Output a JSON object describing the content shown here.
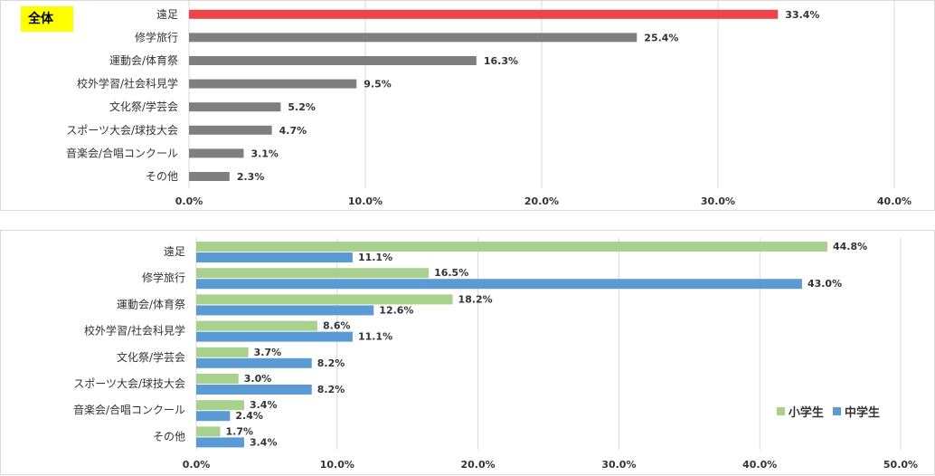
{
  "chart_data": [
    {
      "type": "bar",
      "orientation": "horizontal",
      "badge": "全体",
      "categories": [
        "遠足",
        "修学旅行",
        "運動会/体育祭",
        "校外学習/社会科見学",
        "文化祭/学芸会",
        "スポーツ大会/球技大会",
        "音楽会/合唱コンクール",
        "その他"
      ],
      "values": [
        33.4,
        25.4,
        16.3,
        9.5,
        5.2,
        4.7,
        3.1,
        2.3
      ],
      "data_labels": [
        "33.4%",
        "25.4%",
        "16.3%",
        "9.5%",
        "5.2%",
        "4.7%",
        "3.1%",
        "2.3%"
      ],
      "xlim": [
        0,
        40
      ],
      "xticks": [
        0,
        10,
        20,
        30,
        40
      ],
      "xtick_labels": [
        "0.0%",
        "10.0%",
        "20.0%",
        "30.0%",
        "40.0%"
      ],
      "highlight_color": "#f0444b",
      "bar_color": "#7f7f7f",
      "grid": true
    },
    {
      "type": "bar",
      "orientation": "horizontal",
      "categories": [
        "遠足",
        "修学旅行",
        "運動会/体育祭",
        "校外学習/社会科見学",
        "文化祭/学芸会",
        "スポーツ大会/球技大会",
        "音楽会/合唱コンクール",
        "その他"
      ],
      "series": [
        {
          "name": "小学生",
          "color": "#a9d18e",
          "values": [
            44.8,
            16.5,
            18.2,
            8.6,
            3.7,
            3.0,
            3.4,
            1.7
          ],
          "labels": [
            "44.8%",
            "16.5%",
            "18.2%",
            "8.6%",
            "3.7%",
            "3.0%",
            "3.4%",
            "1.7%"
          ]
        },
        {
          "name": "中学生",
          "color": "#5b9bd5",
          "values": [
            11.1,
            43.0,
            12.6,
            11.1,
            8.2,
            8.2,
            2.4,
            3.4
          ],
          "labels": [
            "11.1%",
            "43.0%",
            "12.6%",
            "11.1%",
            "8.2%",
            "8.2%",
            "2.4%",
            "3.4%"
          ]
        }
      ],
      "xlim": [
        0,
        50
      ],
      "xticks": [
        0,
        10,
        20,
        30,
        40,
        50
      ],
      "xtick_labels": [
        "0.0%",
        "10.0%",
        "20.0%",
        "30.0%",
        "40.0%",
        "50.0%"
      ],
      "legend_position": "bottom-right",
      "grid": true
    }
  ]
}
